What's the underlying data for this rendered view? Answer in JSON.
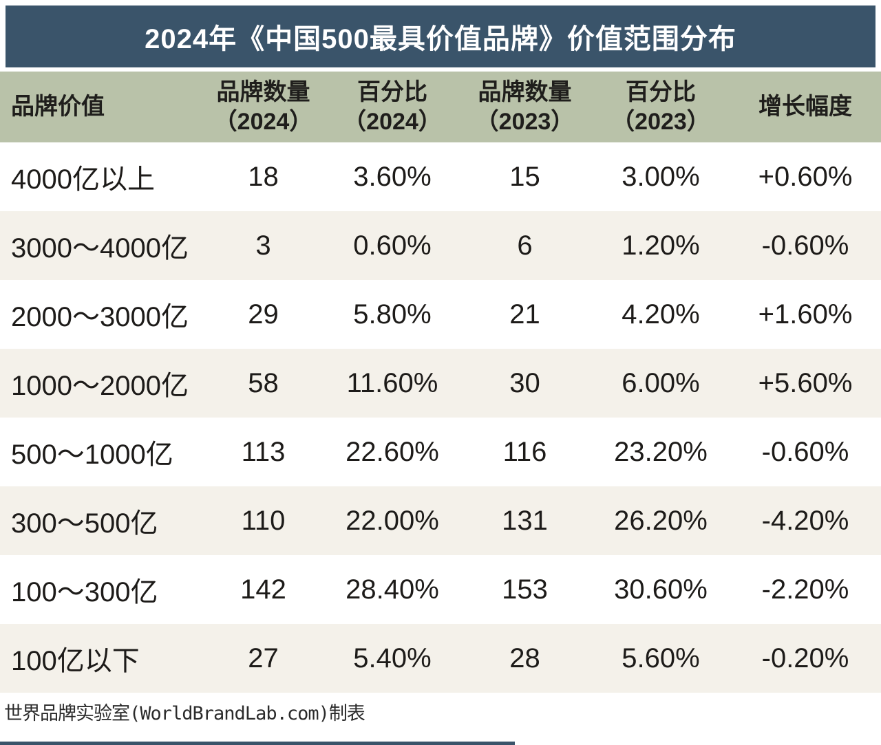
{
  "title_bar": {
    "text": "2024年《中国500最具价值品牌》价值范围分布"
  },
  "colors": {
    "title_bar_bg": "#3a546a",
    "header_row_bg": "#b9c2a9",
    "row_alt_bg": "#f4f1ea",
    "row_bg": "#ffffff",
    "text": "#1d1b19"
  },
  "table": {
    "header": [
      {
        "label": "品牌价值",
        "sub": ""
      },
      {
        "label": "品牌数量",
        "sub": "（2024）"
      },
      {
        "label": "百分比",
        "sub": "（2024）"
      },
      {
        "label": "品牌数量",
        "sub": "（2023）"
      },
      {
        "label": "百分比",
        "sub": "（2023）"
      },
      {
        "label": "增长幅度",
        "sub": ""
      }
    ],
    "rows": [
      [
        "4000亿以上",
        "18",
        "3.60%",
        "15",
        "3.00%",
        "+0.60%"
      ],
      [
        "3000～4000亿",
        "3",
        "0.60%",
        "6",
        "1.20%",
        "-0.60%"
      ],
      [
        "2000～3000亿",
        "29",
        "5.80%",
        "21",
        "4.20%",
        "+1.60%"
      ],
      [
        "1000～2000亿",
        "58",
        "11.60%",
        "30",
        "6.00%",
        "+5.60%"
      ],
      [
        "500～1000亿",
        "113",
        "22.60%",
        "116",
        "23.20%",
        "-0.60%"
      ],
      [
        "300～500亿",
        "110",
        "22.00%",
        "131",
        "26.20%",
        "-4.20%"
      ],
      [
        "100～300亿",
        "142",
        "28.40%",
        "153",
        "30.60%",
        "-2.20%"
      ],
      [
        "100亿以下",
        "27",
        "5.40%",
        "28",
        "5.60%",
        "-0.20%"
      ]
    ]
  },
  "footer": {
    "text": "世界品牌实验室(WorldBrandLab.com)制表"
  },
  "chart_data": {
    "type": "table",
    "title": "2024年《中国500最具价值品牌》价值范围分布",
    "columns": [
      "品牌价值",
      "品牌数量（2024）",
      "百分比（2024）",
      "品牌数量（2023）",
      "百分比（2023）",
      "增长幅度"
    ],
    "rows": [
      [
        "4000亿以上",
        18,
        "3.60%",
        15,
        "3.00%",
        "+0.60%"
      ],
      [
        "3000～4000亿",
        3,
        "0.60%",
        6,
        "1.20%",
        "-0.60%"
      ],
      [
        "2000～3000亿",
        29,
        "5.80%",
        21,
        "4.20%",
        "+1.60%"
      ],
      [
        "1000～2000亿",
        58,
        "11.60%",
        30,
        "6.00%",
        "+5.60%"
      ],
      [
        "500～1000亿",
        113,
        "22.60%",
        116,
        "23.20%",
        "-0.60%"
      ],
      [
        "300～500亿",
        110,
        "22.00%",
        131,
        "26.20%",
        "-4.20%"
      ],
      [
        "100～300亿",
        142,
        "28.40%",
        153,
        "30.60%",
        "-2.20%"
      ],
      [
        "100亿以下",
        27,
        "5.40%",
        28,
        "5.60%",
        "-0.20%"
      ]
    ],
    "source": "世界品牌实验室(WorldBrandLab.com)制表"
  }
}
